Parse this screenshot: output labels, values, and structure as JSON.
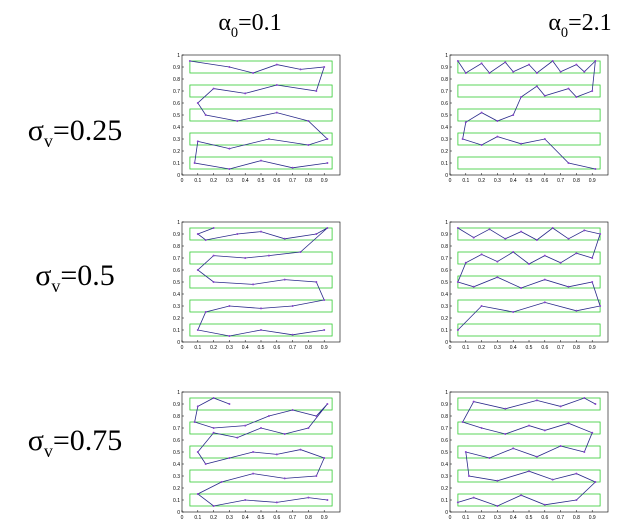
{
  "columns": [
    {
      "symbol": "α",
      "subscript": "0",
      "value": "=0.1"
    },
    {
      "symbol": "α",
      "subscript": "0",
      "value": "=2.1"
    }
  ],
  "rows": [
    {
      "symbol": "σ",
      "subscript": "v",
      "value": "=0.25"
    },
    {
      "symbol": "σ",
      "subscript": "v",
      "value": "=0.5"
    },
    {
      "symbol": "σ",
      "subscript": "v",
      "value": "=0.75"
    }
  ],
  "xlim": [
    0,
    1
  ],
  "ylim": [
    0,
    1
  ],
  "xticks": [
    0,
    0.1,
    0.2,
    0.3,
    0.4,
    0.5,
    0.6,
    0.7,
    0.8,
    0.9
  ],
  "yticks": [
    0,
    0.1,
    0.2,
    0.3,
    0.4,
    0.5,
    0.6,
    0.7,
    0.8,
    0.9,
    1
  ],
  "bands": [
    [
      0.05,
      0.15
    ],
    [
      0.25,
      0.35
    ],
    [
      0.45,
      0.55
    ],
    [
      0.65,
      0.75
    ],
    [
      0.85,
      0.95
    ]
  ],
  "band_xrange": [
    0.05,
    0.95
  ],
  "band_color": "#33cc33",
  "path_color": "#2a2a8a",
  "dot_color": "#8844cc",
  "panels": [
    {
      "x": [
        0.05,
        0.3,
        0.45,
        0.6,
        0.75,
        0.9,
        0.85,
        0.6,
        0.4,
        0.2,
        0.1,
        0.15,
        0.35,
        0.6,
        0.8,
        0.92,
        0.8,
        0.55,
        0.3,
        0.1,
        0.08,
        0.3,
        0.5,
        0.7,
        0.92
      ],
      "y": [
        0.95,
        0.9,
        0.85,
        0.92,
        0.88,
        0.9,
        0.7,
        0.75,
        0.68,
        0.72,
        0.6,
        0.5,
        0.45,
        0.52,
        0.45,
        0.3,
        0.25,
        0.3,
        0.22,
        0.28,
        0.1,
        0.05,
        0.12,
        0.06,
        0.1
      ]
    },
    {
      "x": [
        0.05,
        0.1,
        0.2,
        0.25,
        0.35,
        0.4,
        0.5,
        0.55,
        0.65,
        0.7,
        0.8,
        0.85,
        0.92,
        0.9,
        0.8,
        0.75,
        0.6,
        0.55,
        0.45,
        0.4,
        0.3,
        0.2,
        0.1,
        0.08,
        0.2,
        0.3,
        0.45,
        0.6,
        0.75,
        0.92
      ],
      "y": [
        0.95,
        0.85,
        0.93,
        0.85,
        0.94,
        0.86,
        0.92,
        0.85,
        0.95,
        0.86,
        0.92,
        0.86,
        0.95,
        0.7,
        0.65,
        0.72,
        0.66,
        0.74,
        0.65,
        0.5,
        0.45,
        0.52,
        0.44,
        0.3,
        0.25,
        0.32,
        0.26,
        0.3,
        0.1,
        0.05
      ]
    },
    {
      "x": [
        0.2,
        0.1,
        0.15,
        0.35,
        0.5,
        0.65,
        0.85,
        0.92,
        0.75,
        0.55,
        0.4,
        0.2,
        0.1,
        0.2,
        0.45,
        0.65,
        0.85,
        0.9,
        0.7,
        0.5,
        0.3,
        0.15,
        0.1,
        0.3,
        0.5,
        0.7,
        0.9
      ],
      "y": [
        0.95,
        0.9,
        0.85,
        0.9,
        0.92,
        0.86,
        0.9,
        0.95,
        0.75,
        0.72,
        0.7,
        0.72,
        0.6,
        0.5,
        0.48,
        0.52,
        0.5,
        0.35,
        0.3,
        0.28,
        0.3,
        0.25,
        0.1,
        0.05,
        0.1,
        0.06,
        0.1
      ]
    },
    {
      "x": [
        0.05,
        0.15,
        0.25,
        0.35,
        0.45,
        0.55,
        0.65,
        0.75,
        0.85,
        0.95,
        0.9,
        0.8,
        0.7,
        0.6,
        0.5,
        0.4,
        0.3,
        0.2,
        0.1,
        0.05,
        0.15,
        0.3,
        0.45,
        0.6,
        0.75,
        0.9,
        0.95,
        0.8,
        0.6,
        0.4,
        0.2,
        0.05
      ],
      "y": [
        0.95,
        0.87,
        0.94,
        0.86,
        0.92,
        0.85,
        0.95,
        0.86,
        0.93,
        0.9,
        0.7,
        0.74,
        0.66,
        0.72,
        0.65,
        0.75,
        0.67,
        0.73,
        0.66,
        0.5,
        0.46,
        0.54,
        0.45,
        0.52,
        0.46,
        0.5,
        0.3,
        0.26,
        0.33,
        0.25,
        0.3,
        0.1
      ]
    },
    {
      "x": [
        0.3,
        0.2,
        0.1,
        0.08,
        0.2,
        0.4,
        0.55,
        0.7,
        0.85,
        0.92,
        0.8,
        0.65,
        0.5,
        0.35,
        0.2,
        0.1,
        0.15,
        0.3,
        0.45,
        0.6,
        0.75,
        0.9,
        0.85,
        0.65,
        0.45,
        0.25,
        0.1,
        0.2,
        0.4,
        0.6,
        0.8,
        0.92
      ],
      "y": [
        0.9,
        0.95,
        0.88,
        0.75,
        0.7,
        0.72,
        0.8,
        0.85,
        0.8,
        0.9,
        0.7,
        0.65,
        0.7,
        0.62,
        0.66,
        0.5,
        0.4,
        0.45,
        0.5,
        0.48,
        0.52,
        0.45,
        0.3,
        0.28,
        0.32,
        0.25,
        0.15,
        0.05,
        0.1,
        0.08,
        0.12,
        0.1
      ]
    },
    {
      "x": [
        0.92,
        0.85,
        0.7,
        0.55,
        0.35,
        0.15,
        0.08,
        0.2,
        0.35,
        0.5,
        0.6,
        0.75,
        0.9,
        0.85,
        0.7,
        0.55,
        0.4,
        0.25,
        0.1,
        0.12,
        0.3,
        0.5,
        0.65,
        0.8,
        0.92,
        0.8,
        0.6,
        0.45,
        0.3,
        0.15,
        0.05
      ],
      "y": [
        0.9,
        0.95,
        0.88,
        0.93,
        0.86,
        0.92,
        0.75,
        0.7,
        0.65,
        0.72,
        0.68,
        0.74,
        0.66,
        0.5,
        0.55,
        0.46,
        0.53,
        0.45,
        0.5,
        0.3,
        0.26,
        0.34,
        0.27,
        0.32,
        0.25,
        0.1,
        0.06,
        0.14,
        0.05,
        0.12,
        0.08
      ]
    }
  ]
}
